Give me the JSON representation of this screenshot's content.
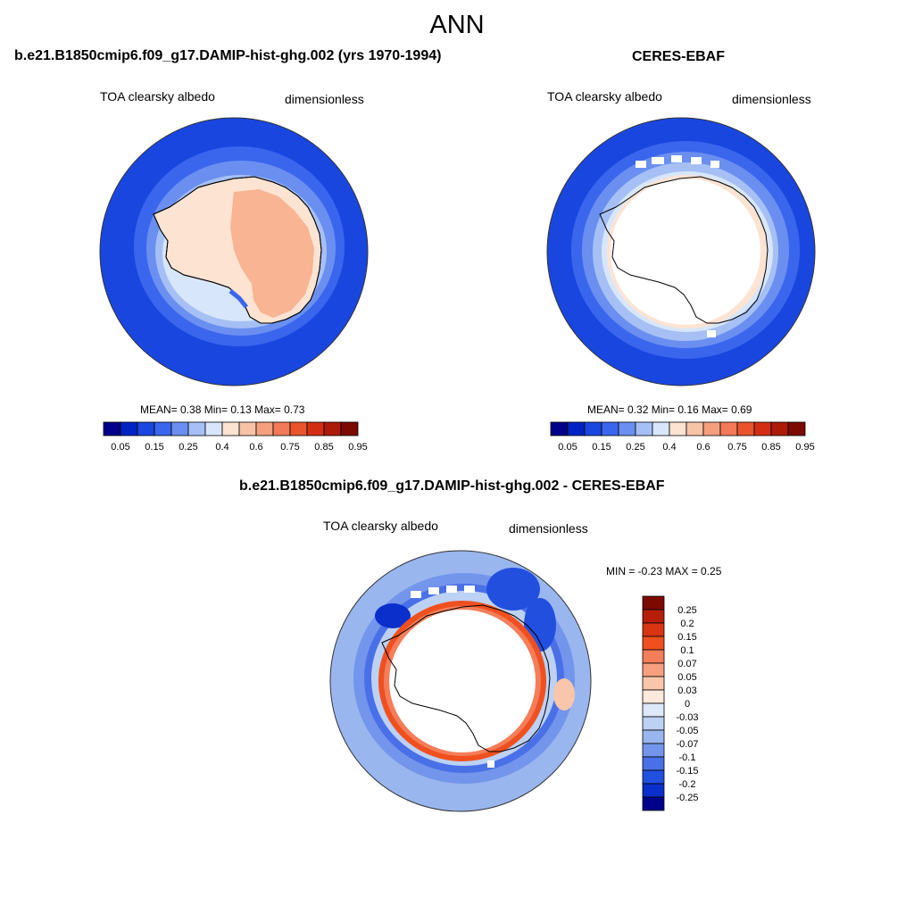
{
  "title": "ANN",
  "panels": [
    {
      "title": "b.e21.B1850cmip6.f09_g17.DAMIP-hist-ghg.002 (yrs 1970-1994)",
      "variable": "TOA clearsky albedo",
      "units": "dimensionless",
      "stats": "MEAN=   0.38  Min=    0.13  Max=    0.73"
    },
    {
      "title": "CERES-EBAF",
      "variable": "TOA clearsky albedo",
      "units": "dimensionless",
      "stats": "MEAN=   0.32  Min=    0.16  Max=    0.69"
    },
    {
      "title": "b.e21.B1850cmip6.f09_g17.DAMIP-hist-ghg.002 - CERES-EBAF",
      "variable": "TOA clearsky albedo",
      "units": "dimensionless",
      "stats": "MIN =  -0.23 MAX =   0.25"
    }
  ],
  "colorbar_h": {
    "labels": [
      "0.05",
      "0.15",
      "0.25",
      "0.4",
      "0.6",
      "0.75",
      "0.85",
      "0.95"
    ],
    "colors": [
      "#00008a",
      "#0023c4",
      "#1a46e0",
      "#3a66ee",
      "#6a8ff0",
      "#a6c0f5",
      "#d8e6fb",
      "#fde3d2",
      "#f8c2a6",
      "#f59f7e",
      "#f27a58",
      "#e9542d",
      "#d22f12",
      "#ad1b08",
      "#7d0a02"
    ]
  },
  "colorbar_v": {
    "labels": [
      "0.25",
      "0.2",
      "0.15",
      "0.1",
      "0.07",
      "0.05",
      "0.03",
      "0",
      "-0.03",
      "-0.05",
      "-0.07",
      "-0.1",
      "-0.15",
      "-0.2",
      "-0.25"
    ],
    "colors": [
      "#7d0a02",
      "#b61e0a",
      "#d93512",
      "#f0501f",
      "#f47d5a",
      "#f7a07f",
      "#f9c6ab",
      "#fde8dc",
      "#dde8f8",
      "#bcd1f4",
      "#9ab6ef",
      "#7395ec",
      "#4a70e8",
      "#234fdf",
      "#0b2fcb",
      "#00008a"
    ]
  }
}
